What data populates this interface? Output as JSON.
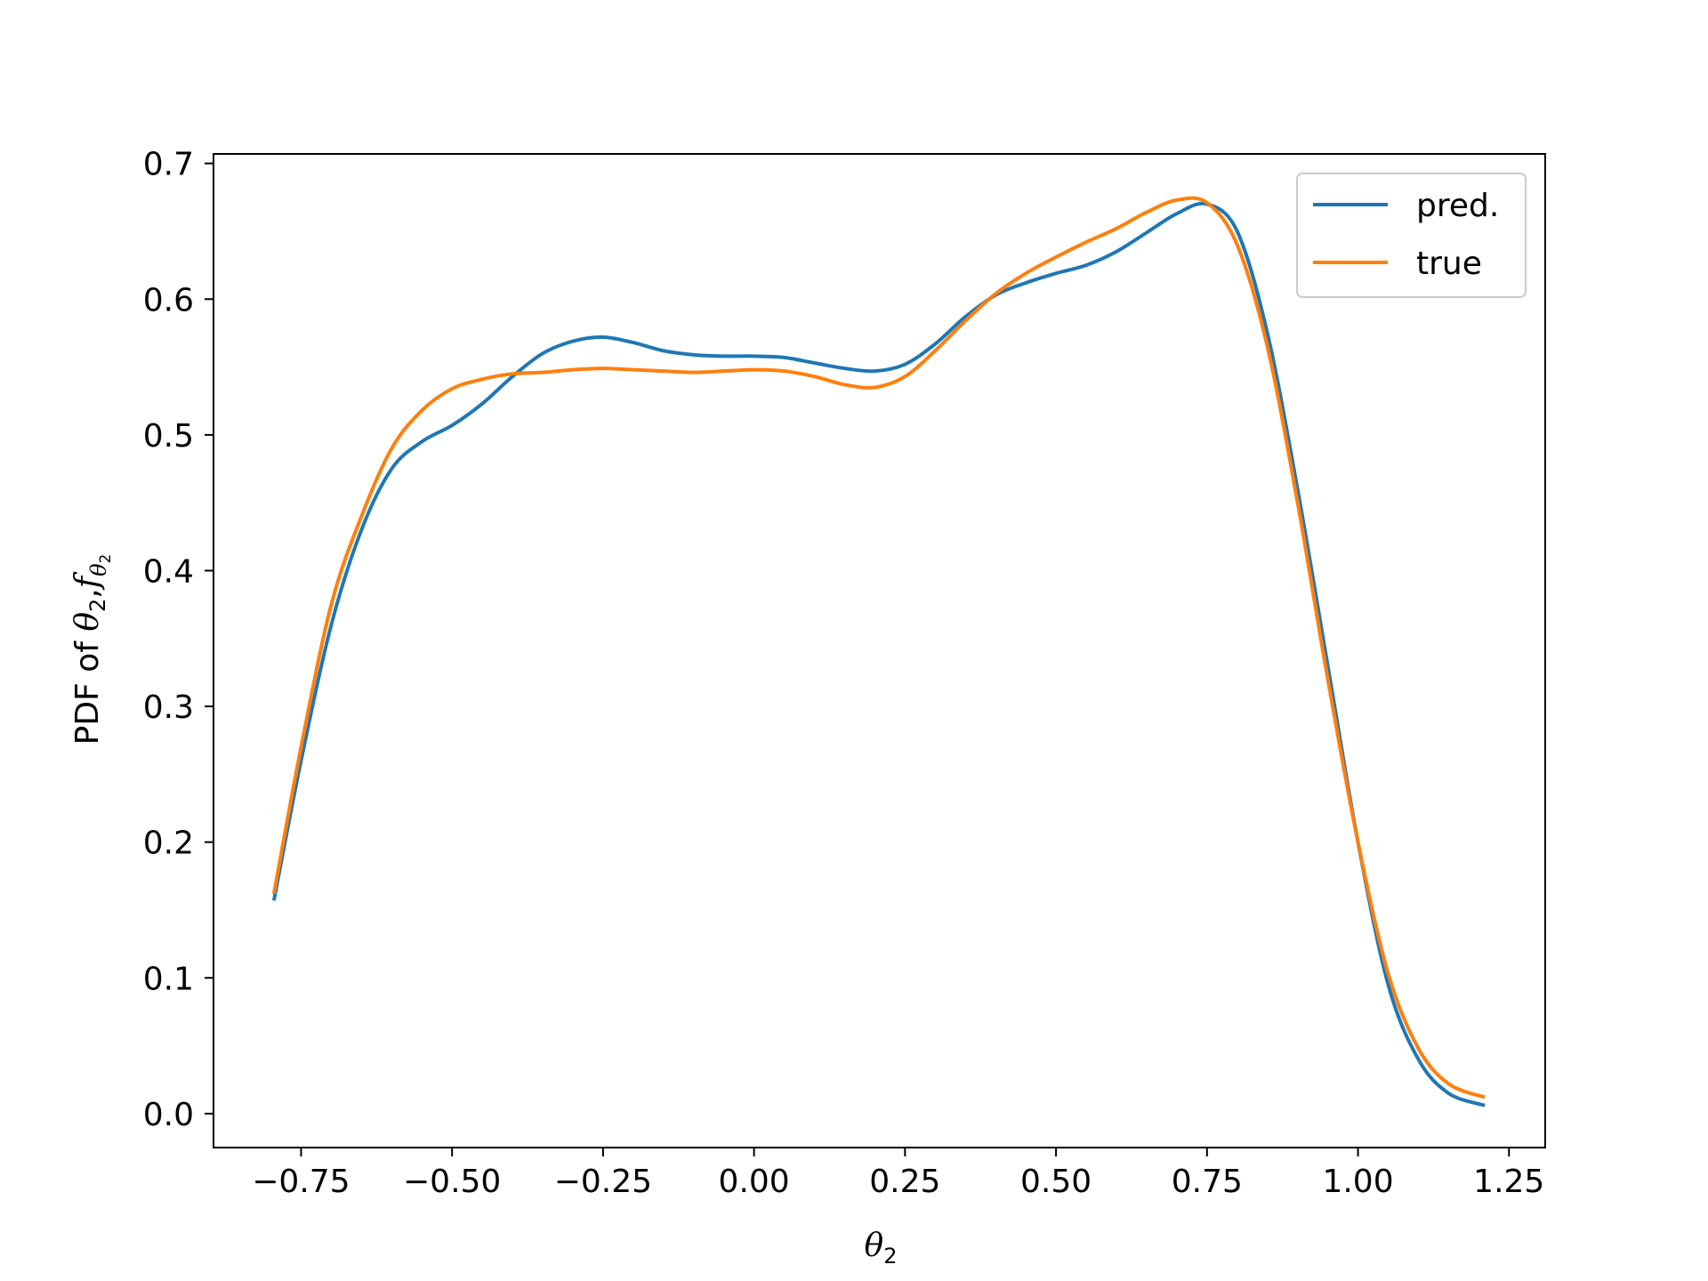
{
  "chart_data": {
    "type": "line",
    "title": "",
    "xlabel": "θ₂",
    "ylabel": "PDF of θ₂,f_θ₂",
    "xlabel_parts": {
      "symbol": "θ",
      "subscript": "2"
    },
    "ylabel_parts": {
      "prefix": "PDF of ",
      "symbol": "θ",
      "subscript": "2",
      "sep": ",",
      "func": "f",
      "func_sub_symbol": "θ",
      "func_sub_sub": "2"
    },
    "xlim": [
      -0.895,
      1.31
    ],
    "ylim": [
      -0.025,
      0.707
    ],
    "xticks": [
      -0.75,
      -0.5,
      -0.25,
      0.0,
      0.25,
      0.5,
      0.75,
      1.0,
      1.25
    ],
    "xtick_labels": [
      "−0.75",
      "−0.50",
      "−0.25",
      "0.00",
      "0.25",
      "0.50",
      "0.75",
      "1.00",
      "1.25"
    ],
    "yticks": [
      0.0,
      0.1,
      0.2,
      0.3,
      0.4,
      0.5,
      0.6,
      0.7
    ],
    "ytick_labels": [
      "0.0",
      "0.1",
      "0.2",
      "0.3",
      "0.4",
      "0.5",
      "0.6",
      "0.7"
    ],
    "grid": false,
    "legend_position": "top-right",
    "series": [
      {
        "name": "pred.",
        "color": "#1f77b4",
        "x": [
          -0.795,
          -0.75,
          -0.7,
          -0.65,
          -0.6,
          -0.55,
          -0.5,
          -0.45,
          -0.4,
          -0.35,
          -0.3,
          -0.25,
          -0.2,
          -0.15,
          -0.1,
          -0.05,
          0.0,
          0.05,
          0.1,
          0.15,
          0.2,
          0.25,
          0.3,
          0.35,
          0.4,
          0.45,
          0.5,
          0.55,
          0.6,
          0.65,
          0.7,
          0.75,
          0.8,
          0.85,
          0.9,
          0.95,
          1.0,
          1.05,
          1.1,
          1.15,
          1.21
        ],
        "y": [
          0.157,
          0.26,
          0.36,
          0.43,
          0.475,
          0.495,
          0.507,
          0.523,
          0.543,
          0.56,
          0.569,
          0.572,
          0.568,
          0.562,
          0.559,
          0.558,
          0.558,
          0.557,
          0.553,
          0.549,
          0.547,
          0.552,
          0.567,
          0.587,
          0.603,
          0.612,
          0.619,
          0.625,
          0.635,
          0.649,
          0.663,
          0.67,
          0.65,
          0.575,
          0.46,
          0.33,
          0.2,
          0.095,
          0.04,
          0.015,
          0.006
        ]
      },
      {
        "name": "true",
        "color": "#ff7f0e",
        "x": [
          -0.795,
          -0.75,
          -0.7,
          -0.65,
          -0.6,
          -0.55,
          -0.5,
          -0.45,
          -0.4,
          -0.35,
          -0.3,
          -0.25,
          -0.2,
          -0.15,
          -0.1,
          -0.05,
          0.0,
          0.05,
          0.1,
          0.15,
          0.2,
          0.25,
          0.3,
          0.35,
          0.4,
          0.45,
          0.5,
          0.55,
          0.6,
          0.65,
          0.7,
          0.75,
          0.8,
          0.85,
          0.9,
          0.95,
          1.0,
          1.05,
          1.1,
          1.15,
          1.21
        ],
        "y": [
          0.162,
          0.27,
          0.375,
          0.44,
          0.49,
          0.518,
          0.534,
          0.541,
          0.545,
          0.546,
          0.548,
          0.549,
          0.548,
          0.547,
          0.546,
          0.547,
          0.548,
          0.547,
          0.543,
          0.537,
          0.535,
          0.543,
          0.562,
          0.584,
          0.604,
          0.619,
          0.631,
          0.642,
          0.652,
          0.664,
          0.673,
          0.671,
          0.64,
          0.565,
          0.45,
          0.32,
          0.2,
          0.103,
          0.048,
          0.022,
          0.012
        ]
      }
    ]
  }
}
